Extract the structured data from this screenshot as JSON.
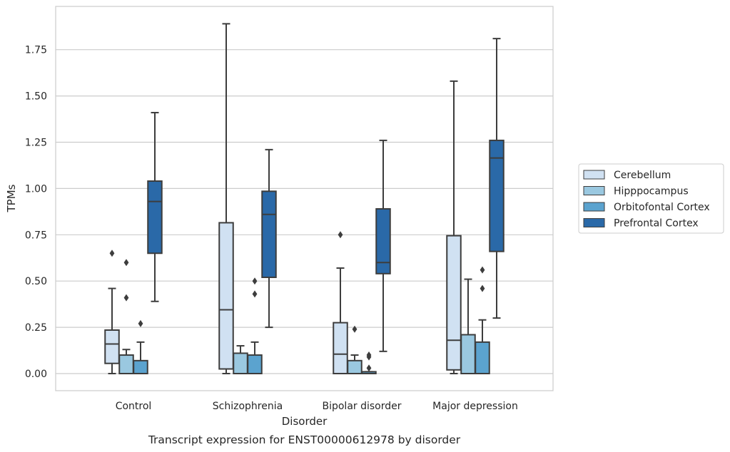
{
  "chart_data": {
    "type": "box",
    "xlabel": "Disorder",
    "ylabel": "TPMs",
    "caption": "Transcript expression for ENST00000612978 by disorder",
    "ylim": [
      -0.09,
      1.98
    ],
    "yticks": [
      "0.00",
      "0.25",
      "0.50",
      "0.75",
      "1.00",
      "1.25",
      "1.50",
      "1.75"
    ],
    "ytick_values": [
      0,
      0.25,
      0.5,
      0.75,
      1.0,
      1.25,
      1.5,
      1.75
    ],
    "grid": true,
    "legend_position": "right",
    "categories": [
      "Control",
      "Schizophrenia",
      "Bipolar disorder",
      "Major depression"
    ],
    "series": [
      {
        "name": "Cerebellum",
        "color": "#d0e1f2",
        "boxes": [
          {
            "q1": 0.055,
            "median": 0.16,
            "q3": 0.235,
            "wlo": 0.0,
            "whi": 0.46,
            "outliers": [
              0.65
            ]
          },
          {
            "q1": 0.025,
            "median": 0.345,
            "q3": 0.815,
            "wlo": 0.0,
            "whi": 1.89,
            "outliers": []
          },
          {
            "q1": 0.0,
            "median": 0.105,
            "q3": 0.275,
            "wlo": 0.0,
            "whi": 0.57,
            "outliers": [
              0.75
            ]
          },
          {
            "q1": 0.02,
            "median": 0.18,
            "q3": 0.745,
            "wlo": 0.0,
            "whi": 1.58,
            "outliers": []
          }
        ]
      },
      {
        "name": "Hipppocampus",
        "color": "#9ac8e0",
        "boxes": [
          {
            "q1": 0.0,
            "median": 0.0,
            "q3": 0.1,
            "wlo": 0.0,
            "whi": 0.13,
            "outliers": [
              0.41,
              0.6
            ]
          },
          {
            "q1": 0.0,
            "median": 0.0,
            "q3": 0.11,
            "wlo": 0.0,
            "whi": 0.15,
            "outliers": []
          },
          {
            "q1": 0.0,
            "median": 0.0,
            "q3": 0.07,
            "wlo": 0.0,
            "whi": 0.1,
            "outliers": [
              0.24
            ]
          },
          {
            "q1": 0.0,
            "median": 0.0,
            "q3": 0.21,
            "wlo": 0.0,
            "whi": 0.51,
            "outliers": []
          }
        ]
      },
      {
        "name": "Orbitofontal Cortex",
        "color": "#5ba3cf",
        "boxes": [
          {
            "q1": 0.0,
            "median": 0.0,
            "q3": 0.07,
            "wlo": 0.0,
            "whi": 0.17,
            "outliers": [
              0.27
            ]
          },
          {
            "q1": 0.0,
            "median": 0.0,
            "q3": 0.1,
            "wlo": 0.0,
            "whi": 0.17,
            "outliers": [
              0.43,
              0.5
            ]
          },
          {
            "q1": 0.0,
            "median": 0.0,
            "q3": 0.01,
            "wlo": 0.0,
            "whi": 0.01,
            "outliers": [
              0.03,
              0.09,
              0.1
            ]
          },
          {
            "q1": 0.0,
            "median": 0.0,
            "q3": 0.17,
            "wlo": 0.0,
            "whi": 0.29,
            "outliers": [
              0.46,
              0.56
            ]
          }
        ]
      },
      {
        "name": "Prefrontal Cortex",
        "color": "#2a69a8",
        "boxes": [
          {
            "q1": 0.65,
            "median": 0.93,
            "q3": 1.04,
            "wlo": 0.39,
            "whi": 1.41,
            "outliers": []
          },
          {
            "q1": 0.52,
            "median": 0.86,
            "q3": 0.985,
            "wlo": 0.25,
            "whi": 1.21,
            "outliers": []
          },
          {
            "q1": 0.54,
            "median": 0.6,
            "q3": 0.89,
            "wlo": 0.12,
            "whi": 1.26,
            "outliers": []
          },
          {
            "q1": 0.66,
            "median": 1.165,
            "q3": 1.26,
            "wlo": 0.3,
            "whi": 1.81,
            "outliers": []
          }
        ]
      }
    ]
  }
}
